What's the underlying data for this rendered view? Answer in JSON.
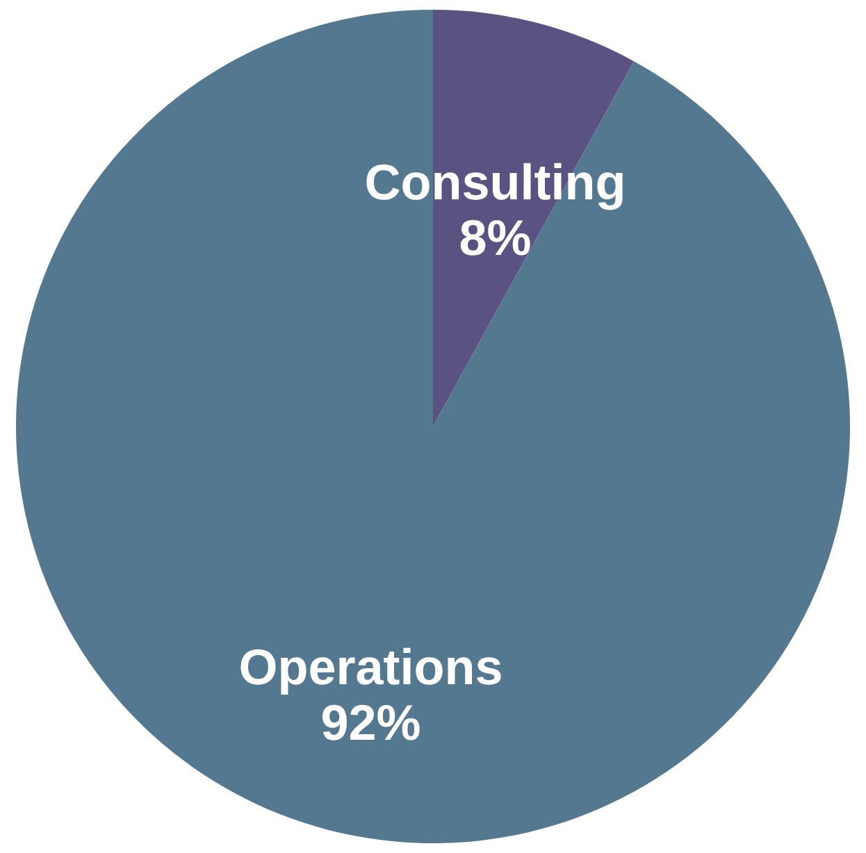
{
  "chart_data": {
    "type": "pie",
    "categories": [
      "Consulting",
      "Operations"
    ],
    "values": [
      8,
      92
    ],
    "colors": [
      "#5a5280",
      "#557891"
    ],
    "value_labels": [
      "8%",
      "92%"
    ]
  }
}
